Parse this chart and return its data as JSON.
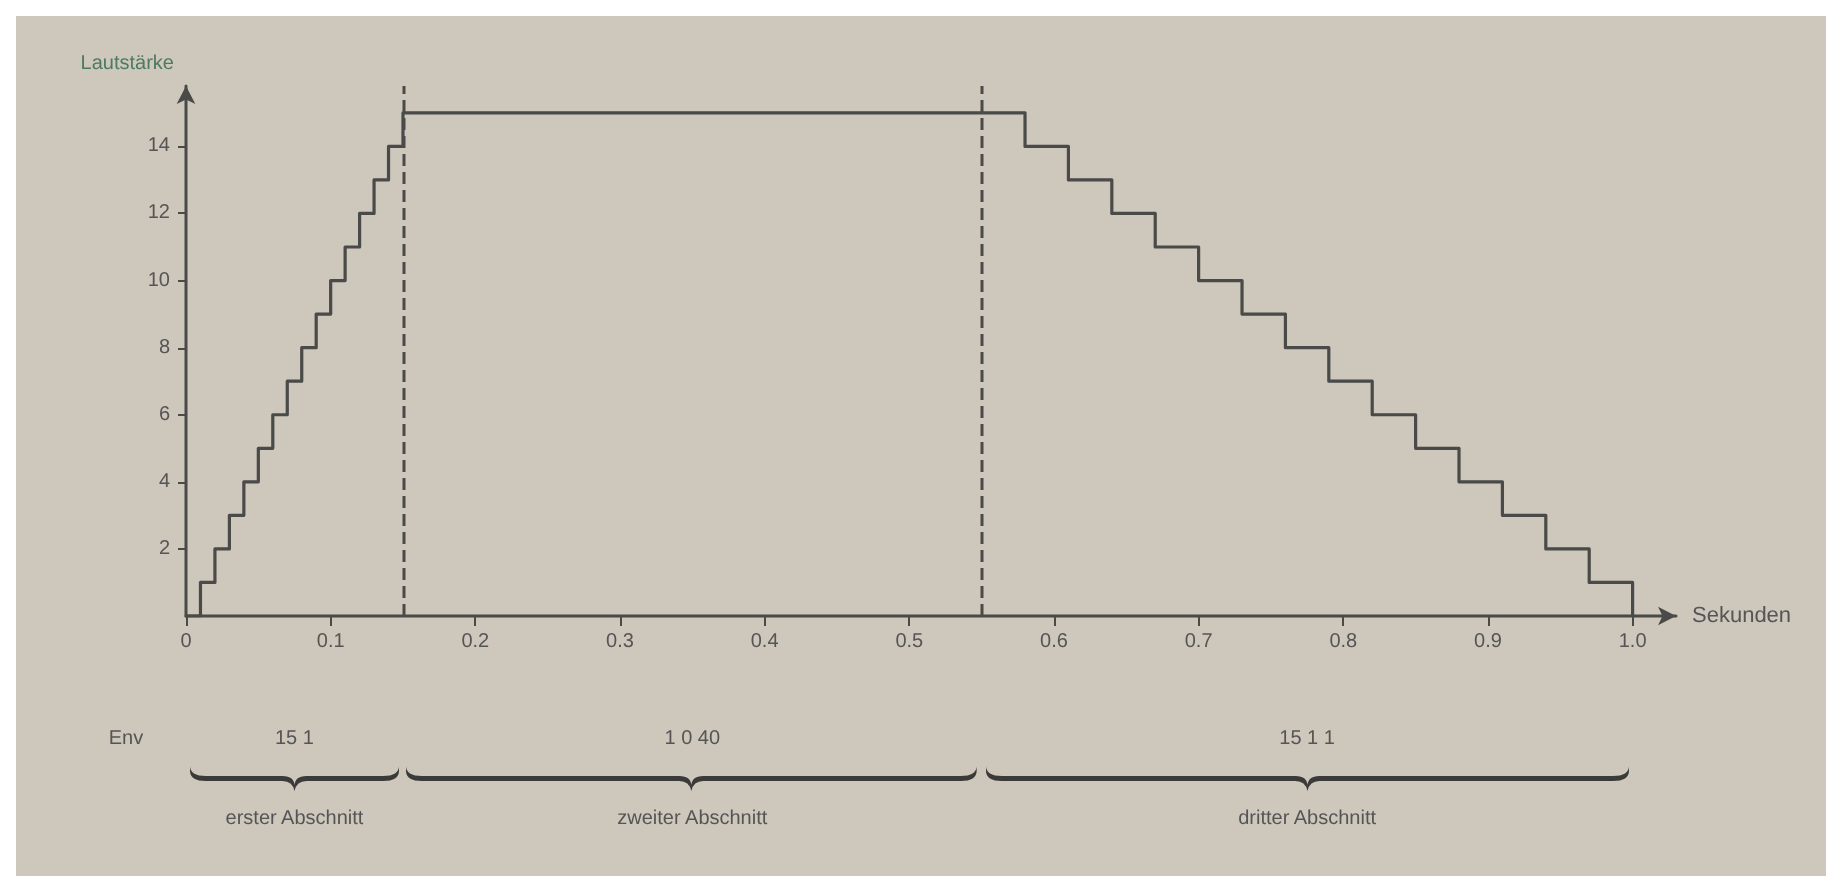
{
  "chart_data": {
    "type": "step",
    "ylabel": "Lautstärke",
    "xlabel": "Sekunden",
    "x": [
      0,
      0.01,
      0.02,
      0.03,
      0.04,
      0.05,
      0.06,
      0.07,
      0.08,
      0.09,
      0.1,
      0.11,
      0.12,
      0.13,
      0.14,
      0.15,
      0.58,
      0.61,
      0.64,
      0.67,
      0.7,
      0.73,
      0.76,
      0.79,
      0.82,
      0.85,
      0.88,
      0.91,
      0.94,
      0.97,
      1.0
    ],
    "series": [
      {
        "color": "#4a4a48",
        "values": [
          0,
          1,
          2,
          3,
          4,
          5,
          6,
          7,
          8,
          9,
          10,
          11,
          12,
          13,
          14,
          15,
          14,
          13,
          12,
          11,
          10,
          9,
          8,
          7,
          6,
          5,
          4,
          3,
          2,
          1,
          0
        ]
      }
    ],
    "xlim": [
      0,
      1.03
    ],
    "xticks": [
      0,
      0.1,
      0.2,
      0.3,
      0.4,
      0.5,
      0.6,
      0.7,
      0.8,
      0.9,
      {
        "value": 1,
        "label": "1.0"
      }
    ],
    "ylim": [
      0,
      15.8
    ],
    "yticks": [
      2,
      4,
      6,
      8,
      10,
      12,
      14
    ],
    "ref_lines": [
      {
        "axis": "x",
        "value": 0.15,
        "line_style": "dashed",
        "color": "#4a4a48"
      },
      {
        "axis": "x",
        "value": 0.55,
        "line_style": "dashed",
        "color": "#4a4a48"
      }
    ],
    "annotations": [
      "Env",
      "15 1",
      "1 0 40",
      "15 1 1",
      "erster Abschnitt",
      "zweiter Abschnitt",
      "dritter Abschnitt"
    ],
    "grid": false,
    "marker": "none",
    "line_style": "solid"
  }
}
